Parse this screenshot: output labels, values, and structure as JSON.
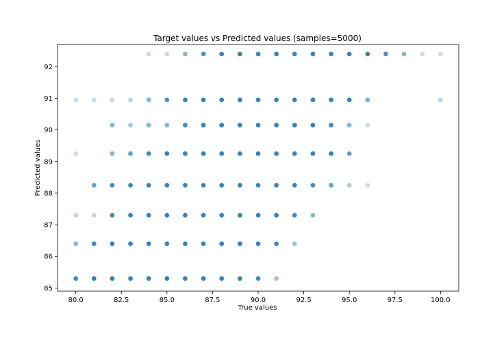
{
  "chart_data": {
    "type": "scatter",
    "title": "Target values vs Predicted values (samples=5000)",
    "xlabel": "True values",
    "ylabel": "Predicted values",
    "xlim": [
      79,
      101
    ],
    "ylim": [
      84.9,
      92.7
    ],
    "x_ticks": [
      80.0,
      82.5,
      85.0,
      87.5,
      90.0,
      92.5,
      95.0,
      97.5,
      100.0
    ],
    "x_tick_labels": [
      "80.0",
      "82.5",
      "85.0",
      "87.5",
      "90.0",
      "92.5",
      "95.0",
      "97.5",
      "100.0"
    ],
    "y_ticks": [
      85,
      86,
      87,
      88,
      89,
      90,
      91,
      92
    ],
    "y_tick_labels": [
      "85",
      "86",
      "87",
      "88",
      "89",
      "90",
      "91",
      "92"
    ],
    "grid": false,
    "marker_color": "#1f77b4",
    "points": [
      {
        "y": 92.4,
        "xs": [
          84,
          85,
          86,
          87,
          88,
          89,
          90,
          91,
          92,
          93,
          94,
          95,
          96,
          97,
          98,
          99,
          100
        ],
        "a": [
          0.25,
          0.25,
          0.55,
          0.8,
          0.9,
          0.9,
          0.9,
          0.9,
          0.9,
          0.9,
          0.9,
          0.9,
          0.9,
          0.8,
          0.55,
          0.25,
          0.25
        ]
      },
      {
        "y": 90.95,
        "xs": [
          80,
          81,
          82,
          83,
          84,
          85,
          86,
          87,
          88,
          89,
          90,
          91,
          92,
          93,
          94,
          95,
          96,
          100
        ],
        "a": [
          0.25,
          0.25,
          0.25,
          0.3,
          0.55,
          0.8,
          0.9,
          0.9,
          0.9,
          0.9,
          0.9,
          0.9,
          0.9,
          0.9,
          0.9,
          0.9,
          0.6,
          0.3
        ]
      },
      {
        "y": 90.15,
        "xs": [
          82,
          83,
          84,
          85,
          86,
          87,
          88,
          89,
          90,
          91,
          92,
          93,
          94,
          95,
          96
        ],
        "a": [
          0.55,
          0.4,
          0.55,
          0.55,
          0.85,
          0.9,
          0.9,
          0.9,
          0.9,
          0.9,
          0.9,
          0.9,
          0.85,
          0.55,
          0.25
        ]
      },
      {
        "y": 89.25,
        "xs": [
          80,
          82,
          83,
          84,
          85,
          86,
          87,
          88,
          89,
          90,
          91,
          92,
          93,
          94,
          95
        ],
        "a": [
          0.25,
          0.55,
          0.7,
          0.85,
          0.9,
          0.9,
          0.9,
          0.9,
          0.9,
          0.9,
          0.9,
          0.9,
          0.9,
          0.9,
          0.7
        ]
      },
      {
        "y": 88.25,
        "xs": [
          81,
          82,
          83,
          84,
          85,
          86,
          87,
          88,
          89,
          90,
          91,
          92,
          93,
          94,
          95,
          96
        ],
        "a": [
          0.7,
          0.85,
          0.9,
          0.9,
          0.9,
          0.9,
          0.9,
          0.9,
          0.9,
          0.9,
          0.9,
          0.9,
          0.85,
          0.7,
          0.4,
          0.25
        ]
      },
      {
        "y": 87.3,
        "xs": [
          80,
          81,
          82,
          83,
          84,
          85,
          86,
          87,
          88,
          89,
          90,
          91,
          92,
          93
        ],
        "a": [
          0.3,
          0.3,
          0.85,
          0.9,
          0.9,
          0.9,
          0.9,
          0.9,
          0.9,
          0.9,
          0.9,
          0.9,
          0.85,
          0.55
        ]
      },
      {
        "y": 86.4,
        "xs": [
          80,
          81,
          82,
          83,
          84,
          85,
          86,
          87,
          88,
          89,
          90,
          91,
          92
        ],
        "a": [
          0.55,
          0.85,
          0.9,
          0.9,
          0.9,
          0.9,
          0.9,
          0.9,
          0.9,
          0.9,
          0.9,
          0.85,
          0.45
        ]
      },
      {
        "y": 85.3,
        "xs": [
          80,
          81,
          82,
          83,
          84,
          85,
          86,
          87,
          88,
          89,
          90,
          91
        ],
        "a": [
          0.85,
          0.9,
          0.9,
          0.9,
          0.9,
          0.9,
          0.9,
          0.9,
          0.9,
          0.9,
          0.85,
          0.45
        ]
      }
    ]
  }
}
